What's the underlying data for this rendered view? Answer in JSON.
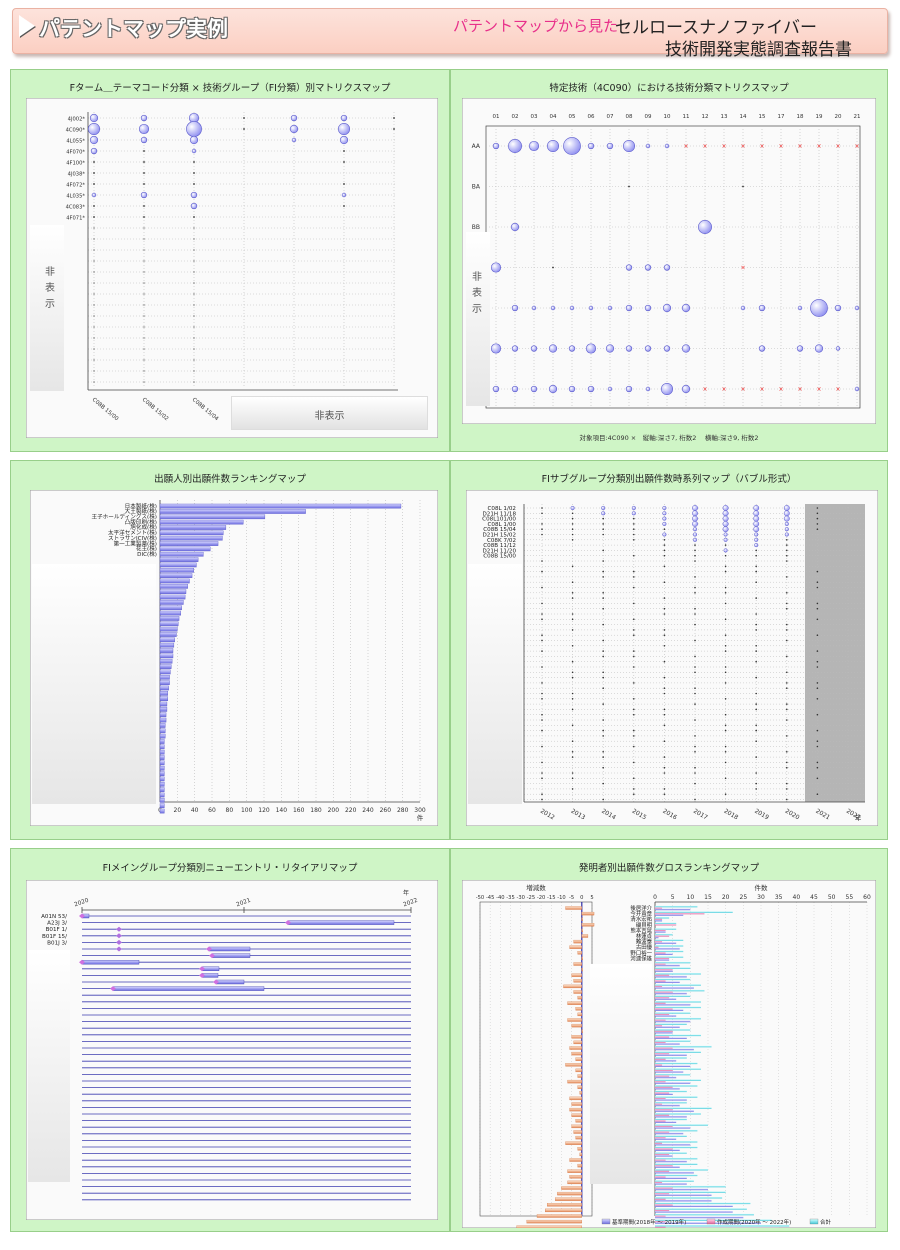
{
  "header": {
    "title": "パテントマップ実例",
    "subtitle_pink": "パテントマップから見た",
    "subtitle_line1": "セルロースナノファイバー",
    "subtitle_line2": "技術開発実態調査報告書"
  },
  "panels": {
    "p1": {
      "title": "Fターム＿テーマコード分類 × 技術グループ（FI分類）別マトリクスマップ",
      "hidden_y": "非表示",
      "hidden_x": "非表示"
    },
    "p2": {
      "title": "特定技術（4C090）における技術分類マトリクスマップ",
      "hidden_y": "非表示",
      "footer": "対象項目:4C090 ×　縦軸:深さ7, 桁数2　 横軸:深さ9, 桁数2"
    },
    "p3": {
      "title": "出願人別出願件数ランキングマップ",
      "unit": "件"
    },
    "p4": {
      "title": "FIサブグループ分類別出願件数時系列マップ（バブル形式）",
      "unit": "年"
    },
    "p5": {
      "title": "FIメイングループ分類別ニューエントリ・リタイアリマップ",
      "unit": "年"
    },
    "p6": {
      "title": "発明者別出願件数グロスランキングマップ",
      "left_axis_title": "増減数",
      "right_axis_title": "件数",
      "legend": [
        "基準期間(2018年 ～ 2019年)",
        "作成期間(2020年 ～ 2022年)",
        "合計"
      ]
    }
  },
  "chart_data": [
    {
      "type": "scatter",
      "title": "Fターム＿テーマコード分類 × 技術グループ（FI分類）別マトリクスマップ",
      "y_categories": [
        "4J002",
        "4C090",
        "4L055",
        "4F070",
        "4F100",
        "4J038",
        "4F072",
        "4L035",
        "4C083",
        "4F071"
      ],
      "x_categories": [
        "C08B 15/00",
        "C08B 15/02",
        "C08B 15/04"
      ]
    },
    {
      "type": "scatter",
      "title": "特定技術（4C090）における技術分類マトリクスマップ",
      "x_categories": [
        "01",
        "02",
        "03",
        "04",
        "05",
        "06",
        "07",
        "08",
        "09",
        "10",
        "11",
        "12",
        "13",
        "14",
        "15",
        "17",
        "18",
        "19",
        "20",
        "21"
      ],
      "y_categories": [
        "AA",
        "BA",
        "BB"
      ],
      "hidden_label": "非表示"
    },
    {
      "type": "bar",
      "title": "出願人別出願件数ランキングマップ",
      "categories": [
        "日本製紙(株)",
        "大王製紙(株)",
        "王子ホールディングス(株)",
        "凸版印刷(株)",
        "旭化成(株)",
        "太平洋セメント(株)",
        "ストラサンICIV(株)",
        "第一工業製薬(株)",
        "花王(株)",
        "DIC(株)"
      ],
      "values": [
        278,
        168,
        121,
        96,
        76,
        73,
        72,
        67,
        58,
        50
      ],
      "xlim": [
        0,
        300
      ],
      "xticks": [
        0,
        20,
        40,
        60,
        80,
        100,
        120,
        140,
        160,
        180,
        200,
        220,
        240,
        260,
        280,
        300
      ],
      "xlabel": "件"
    },
    {
      "type": "scatter",
      "title": "FIサブグループ分類別出願件数時系列マップ（バブル形式）",
      "y_categories": [
        "C08L 1/02",
        "D21H 11/18",
        "C08L101/00",
        "C08L 1/00",
        "C08B 15/04",
        "D21H 15/02",
        "C08K 7/02",
        "C08B 11/12",
        "D21H 11/20",
        "C08B 15/00"
      ],
      "x": [
        "2012",
        "2013",
        "2014",
        "2015",
        "2016",
        "2017",
        "2018",
        "2019",
        "2020",
        "2021",
        "2022"
      ],
      "xlabel": "年"
    },
    {
      "type": "bar",
      "title": "FIメイングループ分類別ニューエントリ・リタイアリマップ",
      "categories": [
        "A01N 53/",
        "A23J 3/",
        "B01F 1/",
        "B01F 15/",
        "B01J 3/"
      ],
      "x": [
        "2020",
        "2021",
        "2022"
      ],
      "xlabel": "年"
    },
    {
      "type": "bar",
      "title": "発明者別出願件数グロスランキングマップ",
      "categories": [
        "後居洋介",
        "今井貴章",
        "清水宏祐",
        "磯貝明",
        "熊本吉晃",
        "林蓮貞",
        "難波泰",
        "古田優",
        "野口裕一",
        "河連保雄"
      ],
      "series": [
        {
          "name": "基準期間(2018年 ～ 2019年)",
          "values": [
            10,
            8,
            2,
            0,
            3,
            1,
            6,
            7,
            5,
            4
          ]
        },
        {
          "name": "作成期間(2020年 ～ 2022年)",
          "values": [
            2,
            14,
            2,
            6,
            3,
            4,
            2,
            1,
            3,
            4
          ]
        },
        {
          "name": "合計",
          "values": [
            12,
            22,
            4,
            6,
            6,
            5,
            8,
            8,
            8,
            8
          ]
        }
      ],
      "diff_xlim": [
        -50,
        5
      ],
      "diff_xticks": [
        -50,
        -45,
        -40,
        -35,
        -30,
        -25,
        -20,
        -15,
        -10,
        -5,
        0,
        5
      ],
      "count_xlim": [
        0,
        60
      ],
      "count_xticks": [
        0,
        5,
        10,
        15,
        20,
        25,
        30,
        35,
        40,
        45,
        50,
        55,
        60
      ],
      "left_title": "増減数",
      "right_title": "件数"
    }
  ]
}
